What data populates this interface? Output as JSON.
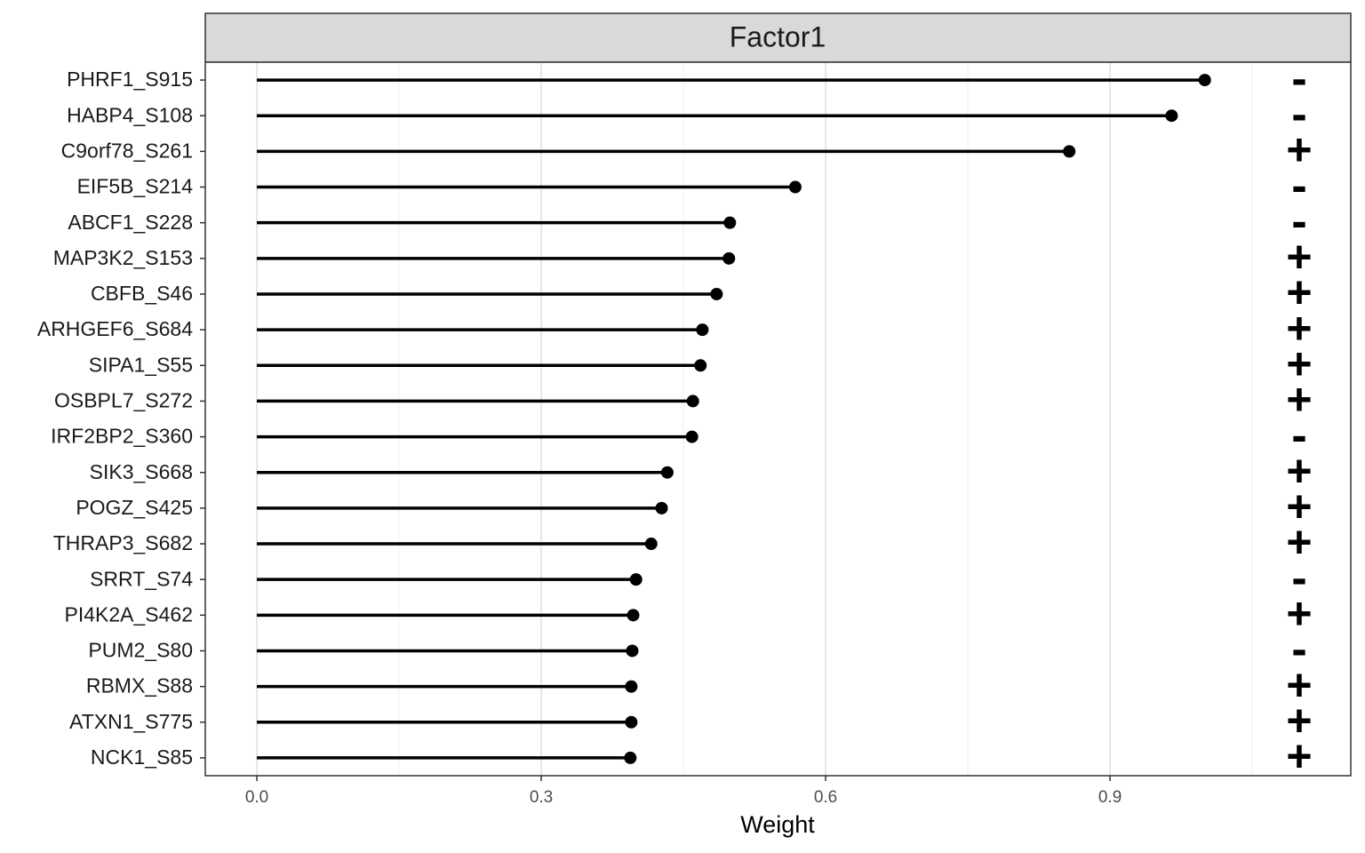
{
  "chart_data": {
    "type": "lollipop",
    "title": "Factor1",
    "x_label": "Weight",
    "categories": [
      "PHRF1_S915",
      "HABP4_S108",
      "C9orf78_S261",
      "EIF5B_S214",
      "ABCF1_S228",
      "MAP3K2_S153",
      "CBFB_S46",
      "ARHGEF6_S684",
      "SIPA1_S55",
      "OSBPL7_S272",
      "IRF2BP2_S360",
      "SIK3_S668",
      "POGZ_S425",
      "THRAP3_S682",
      "SRRT_S74",
      "PI4K2A_S462",
      "PUM2_S80",
      "RBMX_S88",
      "ATXN1_S775",
      "NCK1_S85"
    ],
    "values": [
      1.0,
      0.965,
      0.857,
      0.568,
      0.499,
      0.498,
      0.485,
      0.47,
      0.468,
      0.46,
      0.459,
      0.433,
      0.427,
      0.416,
      0.4,
      0.397,
      0.396,
      0.395,
      0.395,
      0.394
    ],
    "signs": [
      "-",
      "-",
      "+",
      "-",
      "-",
      "+",
      "+",
      "+",
      "+",
      "+",
      "-",
      "+",
      "+",
      "+",
      "-",
      "+",
      "-",
      "+",
      "+",
      "+"
    ],
    "color": "#000000",
    "xlim": [
      -0.0544,
      1.154
    ],
    "xticks": [
      {
        "value": 0,
        "label": "0.0"
      },
      0.3,
      0.6,
      0.9
    ],
    "minor_xticks": [
      0.15,
      0.45,
      0.75,
      1.05
    ],
    "grid": true
  }
}
